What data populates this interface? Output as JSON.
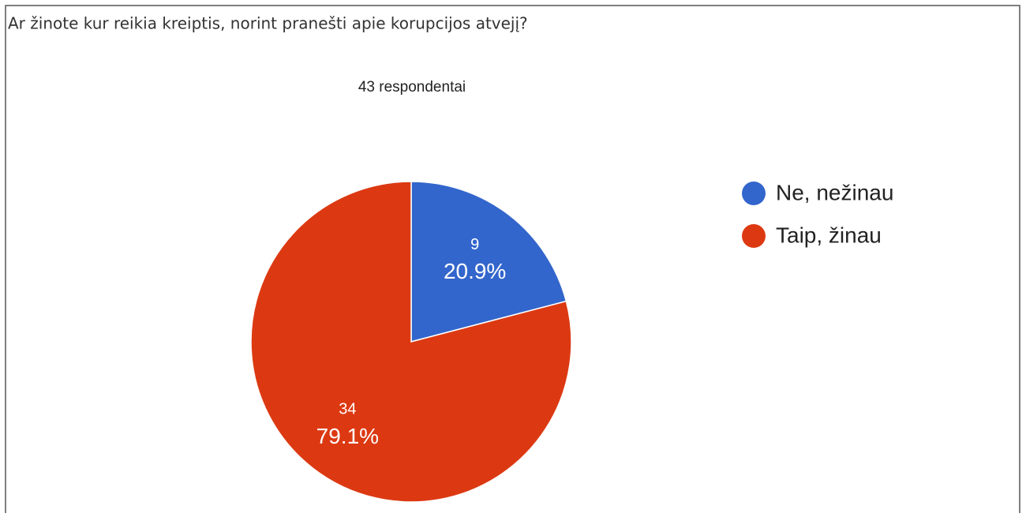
{
  "chart_data": {
    "type": "pie",
    "title": "Ar žinote kur reikia kreiptis, norint pranešti apie korupcijos atvejį?",
    "subtitle": "43 respondentai",
    "categories": [
      "Ne, nežinau",
      "Taip, žinau"
    ],
    "values": [
      9,
      34
    ],
    "percent_labels": [
      "20.9%",
      "79.1%"
    ],
    "colors": [
      "#3366cc",
      "#dc3912"
    ],
    "legend": "right"
  }
}
